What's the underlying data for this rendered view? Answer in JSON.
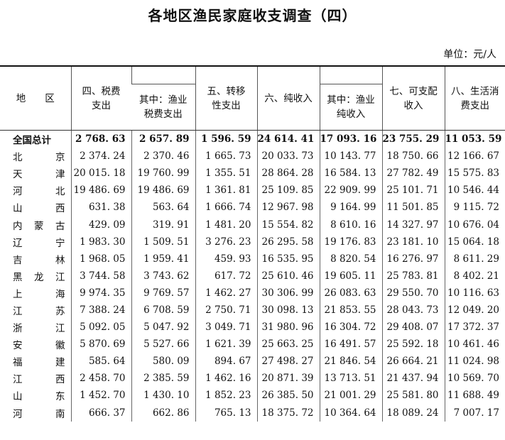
{
  "title": "各地区渔民家庭收支调查（四）",
  "unit": "单位：元/人",
  "headers": {
    "region": "地　　区",
    "tax": "四、税费支出",
    "fishery_tax": "其中：渔业税费支出",
    "transfer": "五、转移性支出",
    "net_income": "六、纯收入",
    "fishery_net_income": "其中：渔业纯收入",
    "disposable": "七、可支配收入",
    "consumption": "八、生活消费支出"
  },
  "rows": [
    {
      "region": [
        "全国总计"
      ],
      "values": [
        "2 768. 63",
        "2 657. 89",
        "1 596. 59",
        "24 614. 41",
        "17 093. 16",
        "23 755. 29",
        "11 053. 59"
      ]
    },
    {
      "region": [
        "北",
        "京"
      ],
      "values": [
        "2 374. 24",
        "2 370. 46",
        "1 665. 73",
        "20 033. 73",
        "10 143. 77",
        "18 750. 66",
        "12 166. 67"
      ]
    },
    {
      "region": [
        "天",
        "津"
      ],
      "values": [
        "20 015. 18",
        "19 760. 99",
        "1 355. 51",
        "28 864. 28",
        "16 584. 13",
        "27 782. 49",
        "15 575. 83"
      ]
    },
    {
      "region": [
        "河",
        "北"
      ],
      "values": [
        "19 486. 69",
        "19 486. 69",
        "1 361. 81",
        "25 109. 85",
        "22 909. 99",
        "25 101. 71",
        "10 546. 44"
      ]
    },
    {
      "region": [
        "山",
        "西"
      ],
      "values": [
        "631. 38",
        "563. 64",
        "1 666. 74",
        "12 967. 98",
        "9 164. 99",
        "11 501. 85",
        "9 115. 72"
      ]
    },
    {
      "region": [
        "内",
        "蒙",
        "古"
      ],
      "values": [
        "429. 09",
        "319. 91",
        "1 481. 20",
        "15 554. 82",
        "8 610. 16",
        "14 327. 97",
        "10 676. 04"
      ]
    },
    {
      "region": [
        "辽",
        "宁"
      ],
      "values": [
        "1 983. 30",
        "1 509. 51",
        "3 276. 23",
        "26 295. 58",
        "19 176. 83",
        "23 181. 10",
        "15 064. 18"
      ]
    },
    {
      "region": [
        "吉",
        "林"
      ],
      "values": [
        "1 968. 05",
        "1 959. 41",
        "459. 93",
        "16 535. 95",
        "8 820. 54",
        "16 276. 97",
        "8 611. 29"
      ]
    },
    {
      "region": [
        "黑",
        "龙",
        "江"
      ],
      "values": [
        "3 744. 58",
        "3 743. 62",
        "617. 72",
        "25 610. 46",
        "19 605. 11",
        "25 783. 81",
        "8 402. 21"
      ]
    },
    {
      "region": [
        "上",
        "海"
      ],
      "values": [
        "9 974. 35",
        "9 769. 57",
        "1 462. 27",
        "30 306. 99",
        "26 083. 63",
        "29 550. 70",
        "10 116. 63"
      ]
    },
    {
      "region": [
        "江",
        "苏"
      ],
      "values": [
        "7 388. 24",
        "6 708. 59",
        "2 750. 71",
        "30 098. 13",
        "21 853. 55",
        "28 043. 73",
        "12 049. 20"
      ]
    },
    {
      "region": [
        "浙",
        "江"
      ],
      "values": [
        "5 092. 05",
        "5 047. 92",
        "3 049. 71",
        "31 980. 96",
        "16 304. 72",
        "29 408. 07",
        "17 372. 37"
      ]
    },
    {
      "region": [
        "安",
        "徽"
      ],
      "values": [
        "5 870. 69",
        "5 527. 66",
        "1 621. 39",
        "25 663. 25",
        "16 491. 57",
        "25 592. 18",
        "10 461. 46"
      ]
    },
    {
      "region": [
        "福",
        "建"
      ],
      "values": [
        "585. 64",
        "580. 09",
        "894. 67",
        "27 498. 27",
        "21 846. 54",
        "26 664. 21",
        "11 024. 98"
      ]
    },
    {
      "region": [
        "江",
        "西"
      ],
      "values": [
        "2 458. 70",
        "2 385. 59",
        "1 462. 16",
        "20 871. 39",
        "13 713. 51",
        "21 437. 94",
        "10 569. 70"
      ]
    },
    {
      "region": [
        "山",
        "东"
      ],
      "values": [
        "1 452. 70",
        "1 430. 10",
        "1 852. 23",
        "26 385. 50",
        "21 001. 29",
        "25 581. 80",
        "11 688. 49"
      ]
    },
    {
      "region": [
        "河",
        "南"
      ],
      "values": [
        "666. 37",
        "662. 86",
        "765. 13",
        "18 375. 72",
        "10 364. 64",
        "18 089. 24",
        "7 007. 17"
      ]
    }
  ]
}
